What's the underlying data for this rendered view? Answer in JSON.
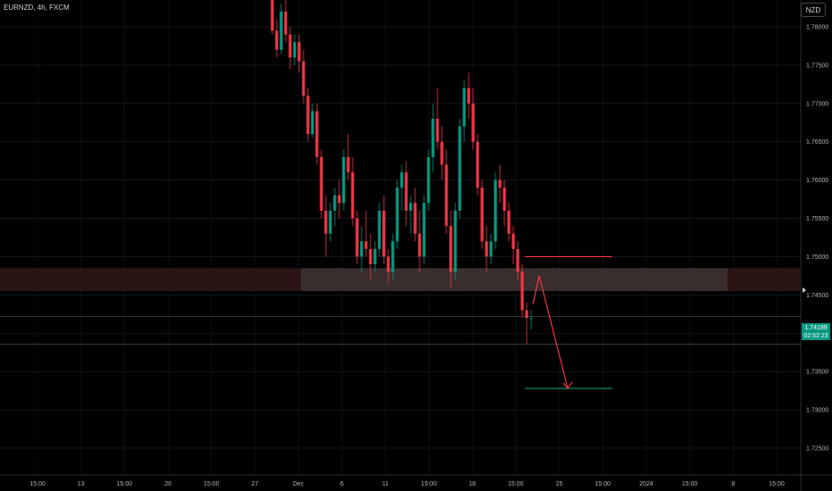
{
  "header": {
    "symbol": "EURNZD, 4h, FXCM",
    "currency": "NZD"
  },
  "last_price": {
    "price": "1.74199",
    "countdown": "02:52:23"
  },
  "chart_data": {
    "type": "candlestick",
    "title": "",
    "ylim": [
      1.7215,
      1.7835
    ],
    "y_ticks": [
      "1.78000",
      "1.77500",
      "1.77000",
      "1.76500",
      "1.76000",
      "1.75500",
      "1.75000",
      "1.74500",
      "1.74000",
      "1.73500",
      "1.73000",
      "1.72500"
    ],
    "x_ticks": [
      "15:00",
      "13",
      "15:00",
      "20",
      "15:00",
      "27",
      "Dec",
      "6",
      "11",
      "15:00",
      "18",
      "15:00",
      "25",
      "15:00",
      "2024",
      "15:00",
      "8",
      "15:00"
    ],
    "colors": {
      "up": "#089981",
      "down": "#f23645",
      "zone": "#3a2a2a",
      "grid": "#1e222d"
    },
    "zone": {
      "top": 1.7485,
      "bottom": 1.7455
    },
    "resistance_line": 1.75,
    "target_line": 1.7328,
    "horizontal_lines": [
      1.7422,
      1.7386
    ],
    "arrow_path": [
      [
        1.7438
      ],
      [
        1.7475
      ],
      [
        1.7328
      ]
    ],
    "candles": [
      [
        1.784,
        1.785,
        1.779,
        1.7795
      ],
      [
        1.7795,
        1.781,
        1.776,
        1.777
      ],
      [
        1.777,
        1.783,
        1.7765,
        1.782
      ],
      [
        1.782,
        1.7835,
        1.778,
        1.779
      ],
      [
        1.779,
        1.78,
        1.7745,
        1.776
      ],
      [
        1.776,
        1.779,
        1.775,
        1.778
      ],
      [
        1.778,
        1.779,
        1.774,
        1.7755
      ],
      [
        1.7755,
        1.777,
        1.77,
        1.771
      ],
      [
        1.771,
        1.772,
        1.765,
        1.766
      ],
      [
        1.766,
        1.77,
        1.7655,
        1.769
      ],
      [
        1.769,
        1.77,
        1.762,
        1.763
      ],
      [
        1.763,
        1.764,
        1.755,
        1.756
      ],
      [
        1.756,
        1.758,
        1.75,
        1.753
      ],
      [
        1.753,
        1.757,
        1.752,
        1.756
      ],
      [
        1.756,
        1.759,
        1.754,
        1.758
      ],
      [
        1.758,
        1.76,
        1.755,
        1.757
      ],
      [
        1.757,
        1.764,
        1.756,
        1.763
      ],
      [
        1.763,
        1.766,
        1.76,
        1.761
      ],
      [
        1.761,
        1.763,
        1.754,
        1.755
      ],
      [
        1.755,
        1.756,
        1.749,
        1.75
      ],
      [
        1.75,
        1.754,
        1.748,
        1.752
      ],
      [
        1.752,
        1.756,
        1.75,
        1.751
      ],
      [
        1.751,
        1.753,
        1.747,
        1.749
      ],
      [
        1.749,
        1.752,
        1.748,
        1.751
      ],
      [
        1.751,
        1.757,
        1.75,
        1.756
      ],
      [
        1.756,
        1.758,
        1.749,
        1.75
      ],
      [
        1.75,
        1.751,
        1.7465,
        1.748
      ],
      [
        1.748,
        1.753,
        1.747,
        1.752
      ],
      [
        1.752,
        1.76,
        1.751,
        1.759
      ],
      [
        1.759,
        1.762,
        1.756,
        1.761
      ],
      [
        1.761,
        1.7625,
        1.754,
        1.756
      ],
      [
        1.756,
        1.758,
        1.753,
        1.757
      ],
      [
        1.757,
        1.759,
        1.752,
        1.753
      ],
      [
        1.753,
        1.756,
        1.748,
        1.75
      ],
      [
        1.75,
        1.758,
        1.749,
        1.757
      ],
      [
        1.757,
        1.764,
        1.756,
        1.763
      ],
      [
        1.763,
        1.77,
        1.761,
        1.768
      ],
      [
        1.768,
        1.772,
        1.764,
        1.765
      ],
      [
        1.765,
        1.767,
        1.76,
        1.762
      ],
      [
        1.762,
        1.764,
        1.753,
        1.754
      ],
      [
        1.754,
        1.756,
        1.746,
        1.748
      ],
      [
        1.748,
        1.757,
        1.747,
        1.756
      ],
      [
        1.756,
        1.768,
        1.755,
        1.767
      ],
      [
        1.767,
        1.773,
        1.765,
        1.772
      ],
      [
        1.772,
        1.774,
        1.768,
        1.77
      ],
      [
        1.77,
        1.772,
        1.764,
        1.765
      ],
      [
        1.765,
        1.766,
        1.758,
        1.759
      ],
      [
        1.759,
        1.76,
        1.751,
        1.752
      ],
      [
        1.752,
        1.754,
        1.748,
        1.75
      ],
      [
        1.75,
        1.753,
        1.749,
        1.752
      ],
      [
        1.752,
        1.761,
        1.751,
        1.76
      ],
      [
        1.76,
        1.762,
        1.757,
        1.759
      ],
      [
        1.759,
        1.76,
        1.754,
        1.756
      ],
      [
        1.756,
        1.757,
        1.752,
        1.753
      ],
      [
        1.753,
        1.754,
        1.749,
        1.751
      ],
      [
        1.751,
        1.752,
        1.747,
        1.748
      ],
      [
        1.748,
        1.749,
        1.742,
        1.743
      ],
      [
        1.743,
        1.744,
        1.7385,
        1.742
      ],
      [
        1.742,
        1.743,
        1.7405,
        1.742
      ]
    ]
  }
}
